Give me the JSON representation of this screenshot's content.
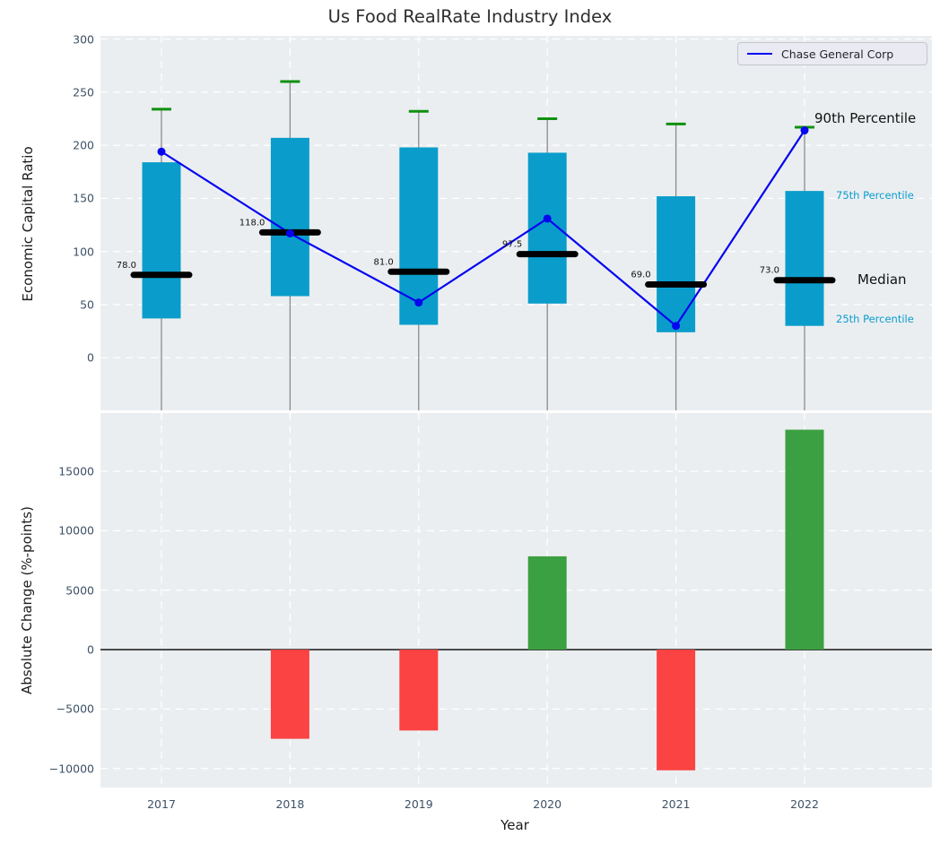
{
  "title": "Us Food RealRate Industry Index",
  "legend": {
    "label": "Chase General Corp"
  },
  "side_labels": {
    "p90": "90th Percentile",
    "p75": "75th Percentile",
    "median": "Median",
    "p25": "25th Percentile"
  },
  "axes": {
    "top_ylabel": "Economic Capital Ratio",
    "bottom_ylabel": "Absolute Change (%-points)",
    "xlabel": "Year"
  },
  "colors": {
    "box_fill": "#0a9dcb",
    "median_line": "#000000",
    "whisker": "#8a8a8a",
    "p90_tick": "#0f910f",
    "chase_line": "#0505f0",
    "bar_up": "#3ba041",
    "bar_down": "#fb4343",
    "panel_bg": "#ebeef0",
    "grid": "#ffffff",
    "tick_label": "#3d5166",
    "annotation_cyan": "#0a9dd0",
    "zero_line": "#000000"
  },
  "chart_data": [
    {
      "type": "boxplot+line",
      "title": "Us Food RealRate Industry Index",
      "ylabel": "Economic Capital Ratio",
      "categories": [
        "2017",
        "2018",
        "2019",
        "2020",
        "2021",
        "2022"
      ],
      "ylim": [
        -49.5,
        303
      ],
      "grid": true,
      "yticks": [
        {
          "value": 300,
          "label": "300"
        },
        {
          "value": 250,
          "label": "250"
        },
        {
          "value": 200,
          "label": "200"
        },
        {
          "value": 150,
          "label": "150"
        },
        {
          "value": 100,
          "label": "100"
        },
        {
          "value": 50,
          "label": "50"
        },
        {
          "value": 0,
          "label": "0"
        }
      ],
      "series": [
        {
          "name": "90th Percentile",
          "values": [
            234,
            260,
            232,
            225,
            220,
            217
          ]
        },
        {
          "name": "75th Percentile",
          "values": [
            184,
            207,
            198,
            193,
            152,
            157
          ]
        },
        {
          "name": "Median",
          "values": [
            78,
            118,
            81,
            97.5,
            69,
            73
          ]
        },
        {
          "name": "25th Percentile",
          "values": [
            37,
            58,
            31,
            51,
            24,
            30
          ]
        },
        {
          "name": "Chase General Corp",
          "values": [
            194,
            117,
            52,
            131,
            30,
            214
          ]
        }
      ],
      "median_labels": [
        "78.0",
        "118.0",
        "81.0",
        "97.5",
        "69.0",
        "73.0"
      ],
      "legend_position": "upper right"
    },
    {
      "type": "bar",
      "ylabel": "Absolute Change (%-points)",
      "xlabel": "Year",
      "categories": [
        "2017",
        "2018",
        "2019",
        "2020",
        "2021",
        "2022"
      ],
      "values": [
        null,
        -7500,
        -6800,
        7850,
        -10150,
        18500
      ],
      "ylim": [
        -11600,
        19900
      ],
      "grid": true,
      "yticks": [
        {
          "value": 15000,
          "label": "15000"
        },
        {
          "value": 10000,
          "label": "10000"
        },
        {
          "value": 5000,
          "label": "5000"
        },
        {
          "value": 0,
          "label": "0"
        },
        {
          "value": -5000,
          "label": "−5000"
        },
        {
          "value": -10000,
          "label": "−10000"
        }
      ]
    }
  ]
}
